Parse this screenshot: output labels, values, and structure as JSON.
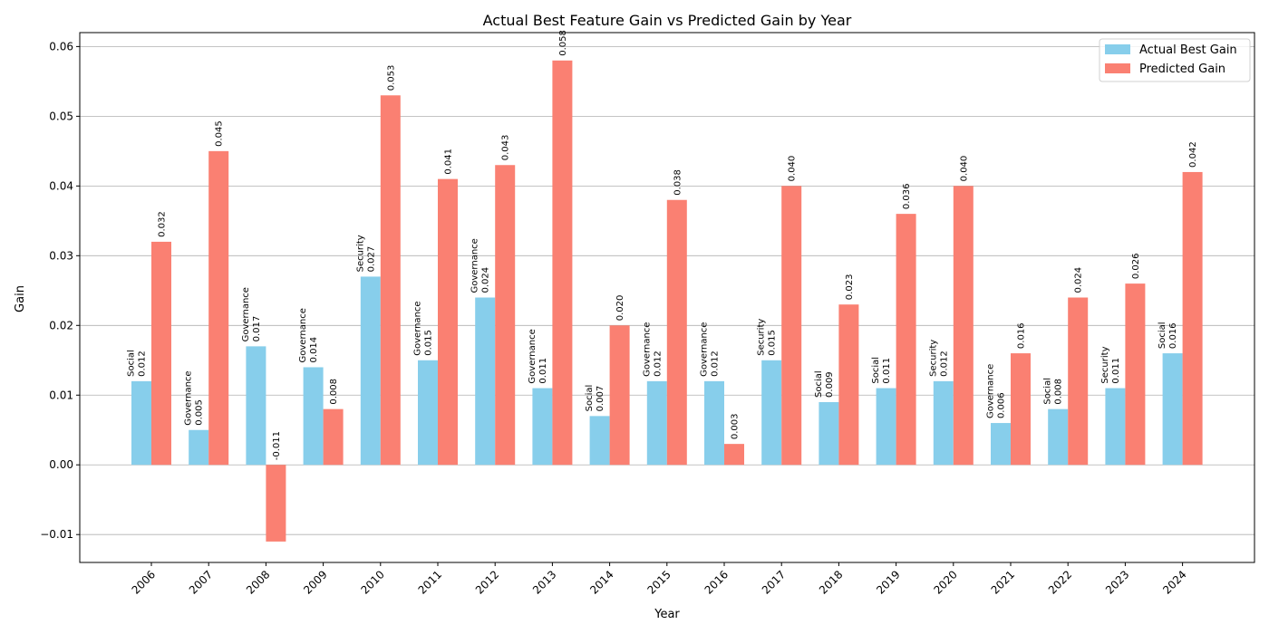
{
  "chart_data": {
    "type": "bar",
    "title": "Actual Best Feature Gain vs Predicted Gain by Year",
    "xlabel": "Year",
    "ylabel": "Gain",
    "ylim": [
      -0.014,
      0.062
    ],
    "yticks": [
      -0.01,
      0.0,
      0.01,
      0.02,
      0.03,
      0.04,
      0.05,
      0.06
    ],
    "ytick_labels": [
      "−0.01",
      "0.00",
      "0.01",
      "0.02",
      "0.03",
      "0.04",
      "0.05",
      "0.06"
    ],
    "grid": "horizontal",
    "legend_position": "top-right",
    "categories": [
      "2006",
      "2007",
      "2008",
      "2009",
      "2010",
      "2011",
      "2012",
      "2013",
      "2014",
      "2015",
      "2016",
      "2017",
      "2018",
      "2019",
      "2020",
      "2021",
      "2022",
      "2023",
      "2024"
    ],
    "series": [
      {
        "name": "Actual Best Gain",
        "color": "#87CEEB",
        "values": [
          0.012,
          0.005,
          0.017,
          0.014,
          0.027,
          0.015,
          0.024,
          0.011,
          0.007,
          0.012,
          0.012,
          0.015,
          0.009,
          0.011,
          0.012,
          0.006,
          0.008,
          0.011,
          0.016
        ],
        "features": [
          "Social",
          "Governance",
          "Governance",
          "Governance",
          "Security",
          "Governance",
          "Governance",
          "Governance",
          "Social",
          "Governance",
          "Governance",
          "Security",
          "Social",
          "Social",
          "Security",
          "Governance",
          "Social",
          "Security",
          "Social"
        ],
        "labels": [
          "0.012",
          "0.005",
          "0.017",
          "0.014",
          "0.027",
          "0.015",
          "0.024",
          "0.011",
          "0.007",
          "0.012",
          "0.012",
          "0.015",
          "0.009",
          "0.011",
          "0.012",
          "0.006",
          "0.008",
          "0.011",
          "0.016"
        ]
      },
      {
        "name": "Predicted Gain",
        "color": "#FA8072",
        "values": [
          0.032,
          0.045,
          -0.011,
          0.008,
          0.053,
          0.041,
          0.043,
          0.058,
          0.02,
          0.038,
          0.003,
          0.04,
          0.023,
          0.036,
          0.04,
          0.016,
          0.024,
          0.026,
          0.042
        ],
        "labels": [
          "0.032",
          "0.045",
          "-0.011",
          "0.008",
          "0.053",
          "0.041",
          "0.043",
          "0.058",
          "0.020",
          "0.038",
          "0.003",
          "0.040",
          "0.023",
          "0.036",
          "0.040",
          "0.016",
          "0.024",
          "0.026",
          "0.042"
        ]
      }
    ]
  }
}
